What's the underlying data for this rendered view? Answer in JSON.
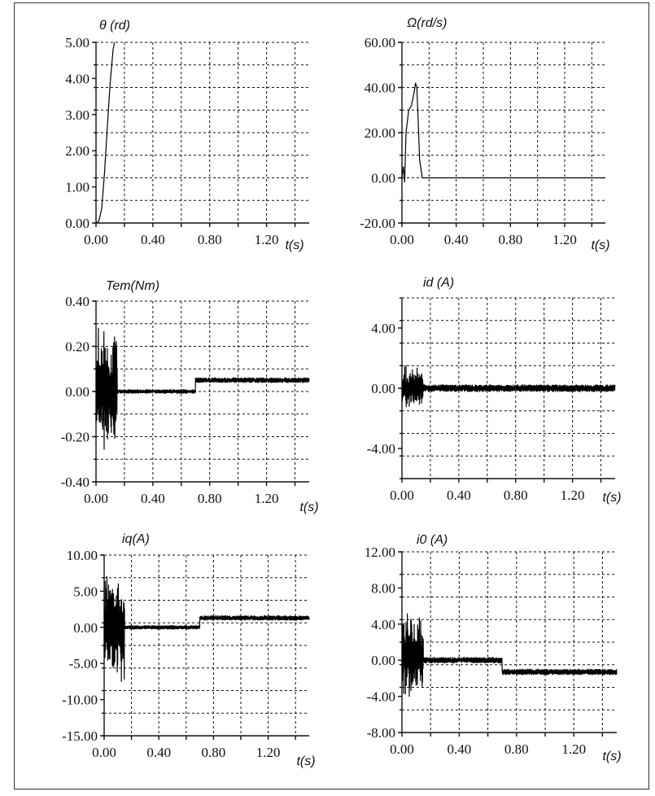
{
  "chart_data": [
    {
      "type": "line",
      "ylabel": "θ (rd)",
      "xlabel": "t(s)",
      "xlim": [
        0,
        1.5
      ],
      "ylim": [
        0,
        5
      ],
      "xticks": [
        "0.00",
        "0.40",
        "0.80",
        "1.20"
      ],
      "yticks": [
        "5.00",
        "4.00",
        "3.00",
        "2.00",
        "1.00",
        "0.00"
      ],
      "grid": true,
      "series": [
        {
          "x": [
            0,
            0.02,
            0.04,
            0.06,
            0.08,
            0.1,
            0.12,
            0.13
          ],
          "y": [
            0,
            0.05,
            0.4,
            1.4,
            2.7,
            3.9,
            4.8,
            5.0
          ]
        }
      ]
    },
    {
      "type": "line",
      "ylabel": "Ω(rd/s)",
      "xlabel": "t(s)",
      "xlim": [
        0,
        1.5
      ],
      "ylim": [
        -20,
        60
      ],
      "xticks": [
        "0.00",
        "0.40",
        "0.80",
        "1.20"
      ],
      "yticks": [
        "60.00",
        "40.00",
        "20.00",
        "0.00",
        "-20.00"
      ],
      "grid": true,
      "series": [
        {
          "x": [
            0,
            0.01,
            0.02,
            0.03,
            0.05,
            0.07,
            0.09,
            0.1,
            0.11,
            0.12,
            0.13,
            0.15,
            1.5
          ],
          "y": [
            0,
            5,
            -2,
            20,
            30,
            32,
            38,
            42,
            40,
            25,
            8,
            0,
            0
          ]
        }
      ]
    },
    {
      "type": "line",
      "ylabel": "Tem(Nm)",
      "xlabel": "t(s)",
      "xlim": [
        0,
        1.5
      ],
      "ylim": [
        -0.4,
        0.4
      ],
      "xticks": [
        "0.00",
        "0.40",
        "0.80",
        "1.20"
      ],
      "yticks": [
        "0.40",
        "0.20",
        "0.00",
        "-0.20",
        "-0.40"
      ],
      "grid": true,
      "series": [
        {
          "segments": [
            {
              "t0": 0.0,
              "t1": 0.15,
              "base": 0.0,
              "amp": 0.3,
              "decay": true
            },
            {
              "t0": 0.15,
              "t1": 0.7,
              "base": 0.0,
              "amp": 0.01,
              "decay": false
            },
            {
              "t0": 0.7,
              "t1": 1.5,
              "base": 0.05,
              "amp": 0.012,
              "decay": false
            }
          ]
        }
      ]
    },
    {
      "type": "line",
      "ylabel": "id (A)",
      "xlabel": "t(s)",
      "xlim": [
        0,
        1.5
      ],
      "ylim": [
        -6,
        6
      ],
      "xticks": [
        "0.00",
        "0.40",
        "0.80",
        "1.20"
      ],
      "yticks": [
        "4.00",
        "0.00",
        "-4.00"
      ],
      "grid": true,
      "series": [
        {
          "segments": [
            {
              "t0": 0.0,
              "t1": 0.15,
              "base": 0.0,
              "amp": 1.6,
              "decay": true
            },
            {
              "t0": 0.15,
              "t1": 1.5,
              "base": 0.0,
              "amp": 0.25,
              "decay": false
            }
          ]
        }
      ]
    },
    {
      "type": "line",
      "ylabel": "iq(A)",
      "xlabel": "t(s)",
      "xlim": [
        0,
        1.5
      ],
      "ylim": [
        -15,
        10
      ],
      "xticks": [
        "0.00",
        "0.40",
        "0.80",
        "1.20"
      ],
      "yticks": [
        "10.00",
        "5.00",
        "0.00",
        "-5.00",
        "-10.00",
        "-15.00"
      ],
      "grid": true,
      "series": [
        {
          "segments": [
            {
              "t0": 0.0,
              "t1": 0.15,
              "base": 0.0,
              "amp": 8.0,
              "decay": true
            },
            {
              "t0": 0.15,
              "t1": 0.7,
              "base": 0.0,
              "amp": 0.3,
              "decay": false
            },
            {
              "t0": 0.7,
              "t1": 1.5,
              "base": 1.3,
              "amp": 0.35,
              "decay": false
            }
          ]
        }
      ]
    },
    {
      "type": "line",
      "ylabel": "i0 (A)",
      "xlabel": "t(s)",
      "xlim": [
        0,
        1.5
      ],
      "ylim": [
        -8,
        12
      ],
      "xticks": [
        "0.00",
        "0.40",
        "0.80",
        "1.20"
      ],
      "yticks": [
        "12.00",
        "8.00",
        "4.00",
        "0.00",
        "-4.00",
        "-8.00"
      ],
      "grid": true,
      "series": [
        {
          "segments": [
            {
              "t0": 0.0,
              "t1": 0.15,
              "base": 0.5,
              "amp": 5.0,
              "decay": true
            },
            {
              "t0": 0.15,
              "t1": 0.7,
              "base": 0.0,
              "amp": 0.35,
              "decay": false
            },
            {
              "t0": 0.7,
              "t1": 1.5,
              "base": -1.3,
              "amp": 0.35,
              "decay": false
            }
          ]
        }
      ]
    }
  ]
}
